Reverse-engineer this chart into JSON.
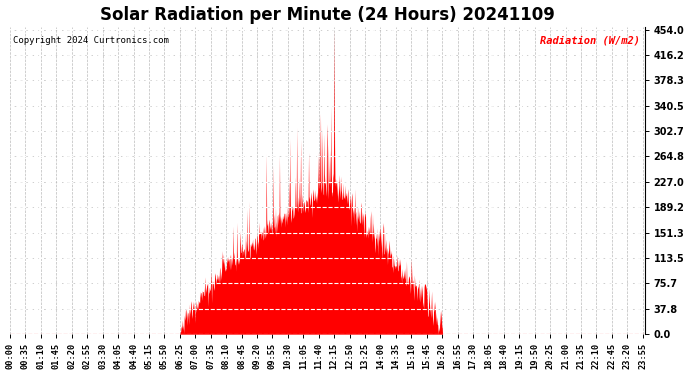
{
  "title": "Solar Radiation per Minute (24 Hours) 20241109",
  "copyright_text": "Copyright 2024 Curtronics.com",
  "legend_label": "Radiation (W/m2)",
  "ymin": 0.0,
  "ymax": 454.0,
  "yticks": [
    0.0,
    37.8,
    75.7,
    113.5,
    151.3,
    189.2,
    227.0,
    264.8,
    302.7,
    340.5,
    378.3,
    416.2,
    454.0
  ],
  "fill_color": "#FF0000",
  "line_color": "#FF0000",
  "grid_color": "#BBBBBB",
  "background_color": "#FFFFFF",
  "plot_background": "#FFFFFF",
  "title_fontsize": 12,
  "tick_fontsize": 6.2,
  "x_tick_interval_minutes": 35,
  "sunrise_min": 385,
  "sunset_min": 980,
  "peak_min": 735,
  "peak_val": 454.0,
  "base_max": 227.0
}
